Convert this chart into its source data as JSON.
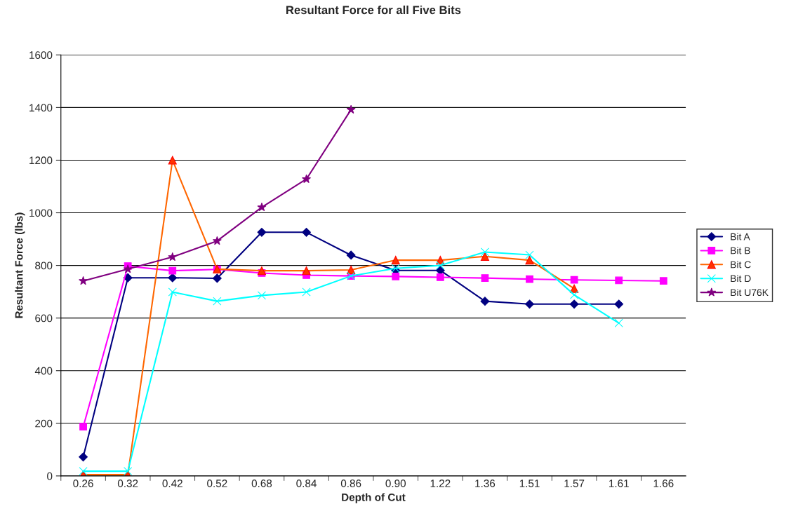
{
  "chart_data": {
    "type": "line",
    "title": "Resultant Force for all Five Bits",
    "xlabel": "Depth of Cut",
    "ylabel": "Resultant Force (lbs)",
    "categories": [
      "0.26",
      "0.32",
      "0.42",
      "0.52",
      "0.68",
      "0.84",
      "0.86",
      "0.90",
      "1.22",
      "1.36",
      "1.51",
      "1.57",
      "1.61",
      "1.66"
    ],
    "series": [
      {
        "name": "Bit A",
        "color": "#000080",
        "marker": "diamond",
        "values": [
          72,
          753,
          753,
          751,
          926,
          926,
          839,
          781,
          781,
          664,
          653,
          653,
          653,
          null
        ]
      },
      {
        "name": "Bit B",
        "color": "#ff00ff",
        "marker": "square",
        "values": [
          187,
          797,
          780,
          785,
          771,
          763,
          760,
          758,
          755,
          752,
          748,
          745,
          743,
          741
        ]
      },
      {
        "name": "Bit C",
        "color": "#ff6600",
        "marker": "triangle",
        "values": [
          5,
          5,
          1200,
          786,
          780,
          780,
          783,
          820,
          820,
          834,
          820,
          712,
          null,
          null
        ]
      },
      {
        "name": "Bit D",
        "color": "#00ffff",
        "marker": "cross",
        "values": [
          18,
          18,
          699,
          664,
          686,
          699,
          760,
          789,
          800,
          851,
          840,
          688,
          581,
          null
        ]
      },
      {
        "name": "Bit U76K",
        "color": "#800080",
        "marker": "star",
        "values": [
          741,
          786,
          832,
          893,
          1021,
          1128,
          1392,
          null,
          null,
          null,
          null,
          null,
          null,
          null
        ]
      }
    ],
    "ylim": [
      0,
      1600
    ],
    "yticks": [
      0,
      200,
      400,
      600,
      800,
      1000,
      1200,
      1400,
      1600
    ],
    "grid": "y",
    "legend": "right"
  }
}
